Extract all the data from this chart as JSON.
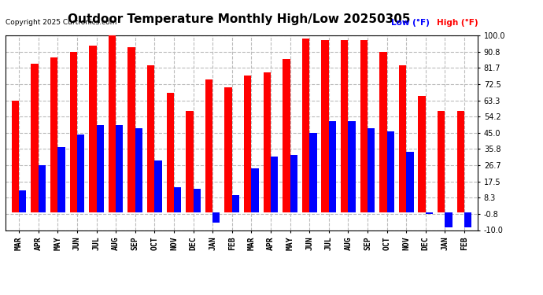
{
  "title": "Outdoor Temperature Monthly High/Low 20250305",
  "copyright": "Copyright 2025 Curtronics.com",
  "legend_low": "Low (°F)",
  "legend_high": "High (°F)",
  "months": [
    "MAR",
    "APR",
    "MAY",
    "JUN",
    "JUL",
    "AUG",
    "SEP",
    "OCT",
    "NOV",
    "DEC",
    "JAN",
    "FEB",
    "MAR",
    "APR",
    "MAY",
    "JUN",
    "JUL",
    "AUG",
    "SEP",
    "OCT",
    "NOV",
    "DEC",
    "JAN",
    "FEB"
  ],
  "highs": [
    63.3,
    84.2,
    87.5,
    90.8,
    94.2,
    100.0,
    93.3,
    83.3,
    67.5,
    57.5,
    75.0,
    70.8,
    77.5,
    79.2,
    86.7,
    98.3,
    97.5,
    97.5,
    97.5,
    90.8,
    83.3,
    65.8,
    57.5,
    57.5
  ],
  "lows": [
    12.5,
    26.7,
    36.7,
    44.2,
    49.2,
    49.2,
    47.5,
    29.2,
    14.2,
    13.3,
    -5.8,
    10.0,
    25.0,
    31.7,
    32.5,
    45.0,
    51.7,
    51.7,
    47.5,
    45.8,
    34.2,
    -0.8,
    -8.3,
    -8.3
  ],
  "yticks": [
    100.0,
    90.8,
    81.7,
    72.5,
    63.3,
    54.2,
    45.0,
    35.8,
    26.7,
    17.5,
    8.3,
    -0.8,
    -10.0
  ],
  "ylim": [
    -10.0,
    100.0
  ],
  "bar_width": 0.38,
  "high_color": "#ff0000",
  "low_color": "#0000ff",
  "background_color": "#ffffff",
  "grid_color": "#bbbbbb",
  "title_fontsize": 11,
  "tick_fontsize": 7,
  "label_fontsize": 7
}
